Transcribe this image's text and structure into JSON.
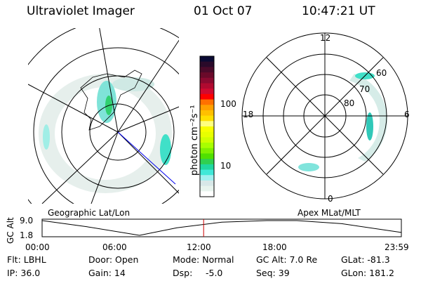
{
  "header": {
    "instrument": "Ultraviolet Imager",
    "date": "01 Oct 07",
    "time": "10:47:21 UT"
  },
  "colorbar": {
    "unit_label": "photon cm⁻²s⁻¹",
    "ticks": [
      "100",
      "10"
    ],
    "colors": [
      "#0a0a33",
      "#2a0a2a",
      "#4a0a2a",
      "#6a0a2a",
      "#8a0a30",
      "#b00a30",
      "#d00a30",
      "#ff0000",
      "#ff7000",
      "#ffa000",
      "#ffc000",
      "#ffe000",
      "#ffff80",
      "#f8ff00",
      "#e8ff00",
      "#d0ff00",
      "#a8ff00",
      "#80f000",
      "#50e000",
      "#30d050",
      "#20d8a0",
      "#40e8d8",
      "#a0f0f0",
      "#d8e8e8",
      "#e8f4ee",
      "#ffffff"
    ]
  },
  "left_plot": {
    "label": "Geographic Lat/Lon"
  },
  "right_plot": {
    "label": "Apex MLat/MLT",
    "mlt_labels": {
      "top": "12",
      "bottom": "0",
      "left": "18",
      "right": "6"
    },
    "lat_labels": [
      "60",
      "70",
      "80"
    ]
  },
  "chart_data": {
    "type": "line",
    "ylabel": "GC Alt",
    "yticks": [
      "9.0",
      "1.8"
    ],
    "xticks": [
      "00:00",
      "06:00",
      "12:00",
      "18:00",
      "23:59"
    ],
    "x": [
      "00:00",
      "03:00",
      "06:30",
      "09:00",
      "12:00",
      "15:00",
      "17:00",
      "20:00",
      "23:59"
    ],
    "y": [
      9.0,
      6.0,
      1.8,
      5.5,
      8.2,
      9.0,
      9.0,
      7.5,
      3.2
    ],
    "current_time": "10:47",
    "current_color": "#cc0000"
  },
  "info": {
    "flt": "Flt: LBHL",
    "ip": "IP: 36.0",
    "door": "Door: Open",
    "gain": "Gain: 14",
    "mode": "Mode: Normal",
    "dsp_label": "Dsp:",
    "dsp_value": "-5.0",
    "gcalt": "GC Alt: 7.0 Re",
    "seq": "Seq: 39",
    "glat": "GLat: -81.3",
    "glon": "GLon: 181.2"
  }
}
